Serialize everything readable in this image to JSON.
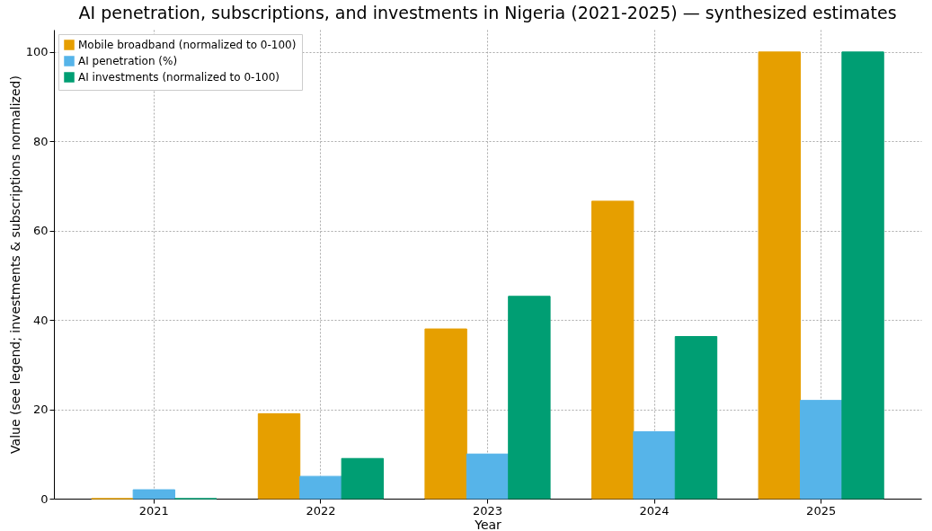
{
  "chart_data": {
    "type": "bar",
    "title": "AI penetration, subscriptions, and investments in Nigeria (2021-2025) — synthesized estimates",
    "xlabel": "Year",
    "ylabel": "Value (see legend; investments & subscriptions normalized)",
    "categories": [
      "2021",
      "2022",
      "2023",
      "2024",
      "2025"
    ],
    "series": [
      {
        "name": "Mobile broadband (normalized to 0-100)",
        "color": "#e69f00",
        "values": [
          0,
          19,
          38,
          66.6,
          100
        ]
      },
      {
        "name": "AI penetration (%)",
        "color": "#56b4e9",
        "values": [
          2,
          5,
          10,
          15,
          22
        ]
      },
      {
        "name": "AI investments (normalized to 0-100)",
        "color": "#009e73",
        "values": [
          0,
          9,
          45.3,
          36.3,
          100
        ]
      }
    ],
    "ylim": [
      0,
      105
    ],
    "yticks": [
      0,
      20,
      40,
      60,
      80,
      100
    ],
    "grid": true,
    "legend": "top left"
  }
}
